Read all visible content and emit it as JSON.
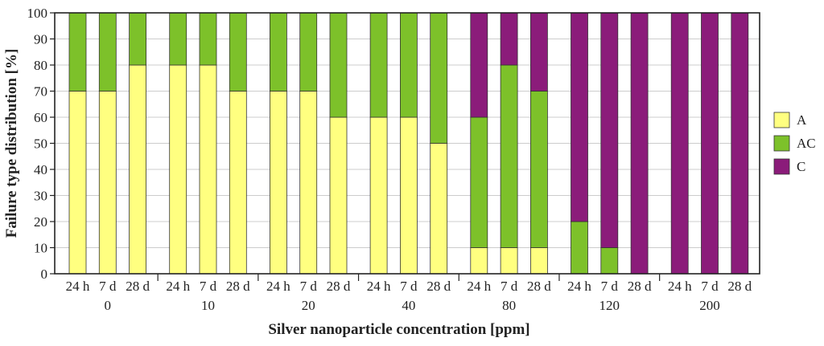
{
  "chart_data": {
    "type": "bar",
    "stacked": true,
    "title": "",
    "xlabel": "Silver nanoparticle concentration [ppm]",
    "ylabel": "Failure type distribution [%]",
    "ylim": [
      0,
      100
    ],
    "yticks": [
      0,
      10,
      20,
      30,
      40,
      50,
      60,
      70,
      80,
      90,
      100
    ],
    "groups": [
      "0",
      "10",
      "20",
      "40",
      "80",
      "120",
      "200"
    ],
    "subcategories": [
      "24 h",
      "7 d",
      "28 d"
    ],
    "categories": [
      "0 / 24 h",
      "0 / 7 d",
      "0 / 28 d",
      "10 / 24 h",
      "10 / 7 d",
      "10 / 28 d",
      "20 / 24 h",
      "20 / 7 d",
      "20 / 28 d",
      "40 / 24 h",
      "40 / 7 d",
      "40 / 28 d",
      "80 / 24 h",
      "80 / 7 d",
      "80 / 28 d",
      "120 / 24 h",
      "120 / 7 d",
      "120 / 28 d",
      "200 / 24 h",
      "200 / 7 d",
      "200 / 28 d"
    ],
    "series": [
      {
        "name": "A",
        "color": "#ffff80",
        "values": [
          70,
          70,
          80,
          80,
          80,
          70,
          70,
          70,
          60,
          60,
          60,
          50,
          10,
          10,
          10,
          0,
          0,
          0,
          0,
          0,
          0
        ]
      },
      {
        "name": "AC",
        "color": "#7dc12a",
        "values": [
          30,
          30,
          20,
          20,
          20,
          30,
          30,
          30,
          40,
          40,
          40,
          50,
          50,
          70,
          60,
          20,
          10,
          0,
          0,
          0,
          0
        ]
      },
      {
        "name": "C",
        "color": "#8b1c7a",
        "values": [
          0,
          0,
          0,
          0,
          0,
          0,
          0,
          0,
          0,
          0,
          0,
          0,
          40,
          20,
          30,
          80,
          90,
          100,
          100,
          100,
          100
        ]
      }
    ],
    "legend": {
      "position": "right",
      "entries": [
        "A",
        "AC",
        "C"
      ]
    }
  }
}
